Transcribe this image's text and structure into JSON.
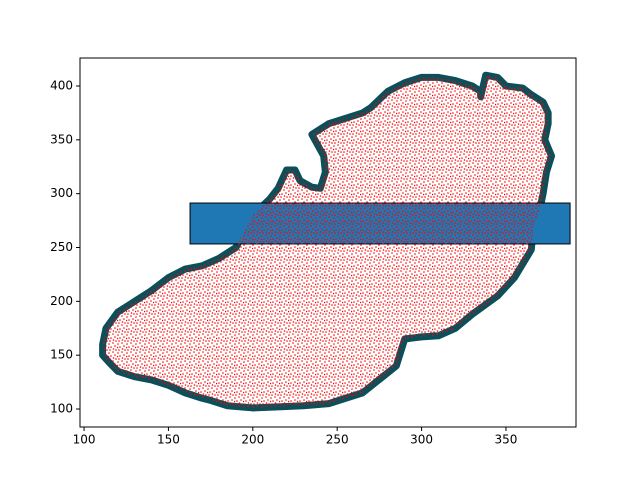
{
  "chart_data": {
    "type": "polygon",
    "xlim": [
      97.6,
      391.5
    ],
    "ylim": [
      83.3,
      426
    ],
    "xticks": [
      100,
      150,
      200,
      250,
      300,
      350
    ],
    "yticks": [
      100,
      150,
      200,
      250,
      300,
      350,
      400
    ],
    "outline": {
      "color": "#0b4f5a",
      "fill_color": "#ff0000",
      "x": [
        111,
        113,
        120,
        130,
        140,
        150,
        160,
        170,
        180,
        190,
        200,
        210,
        215,
        220,
        225,
        228,
        235,
        240,
        243,
        242,
        235,
        245,
        255,
        265,
        270,
        280,
        290,
        300,
        310,
        320,
        330,
        335,
        335,
        338,
        345,
        350,
        360,
        365,
        372,
        375,
        375,
        373,
        377,
        374,
        372,
        370,
        366,
        365,
        360,
        355,
        345,
        330,
        320,
        310,
        300,
        295,
        290,
        287,
        285,
        277,
        265,
        255,
        245,
        230,
        215,
        200,
        185,
        175,
        170,
        160,
        150,
        140,
        130,
        120,
        115,
        111
      ],
      "y": [
        160,
        175,
        190,
        200,
        210,
        222,
        230,
        233,
        240,
        250,
        280,
        295,
        305,
        322,
        322,
        312,
        306,
        305,
        320,
        335,
        355,
        365,
        370,
        375,
        380,
        395,
        403,
        408,
        408,
        405,
        400,
        395,
        390,
        410,
        408,
        400,
        398,
        392,
        385,
        375,
        365,
        350,
        335,
        320,
        300,
        285,
        265,
        248,
        235,
        222,
        205,
        188,
        175,
        168,
        167,
        166,
        165,
        150,
        140,
        130,
        115,
        110,
        105,
        103,
        102,
        101,
        103,
        108,
        110,
        115,
        122,
        127,
        130,
        135,
        143,
        150
      ]
    },
    "rectangle": {
      "color": "#1f77b4",
      "x": [
        162.8,
        388
      ],
      "y": [
        253.3,
        291.3
      ]
    }
  }
}
